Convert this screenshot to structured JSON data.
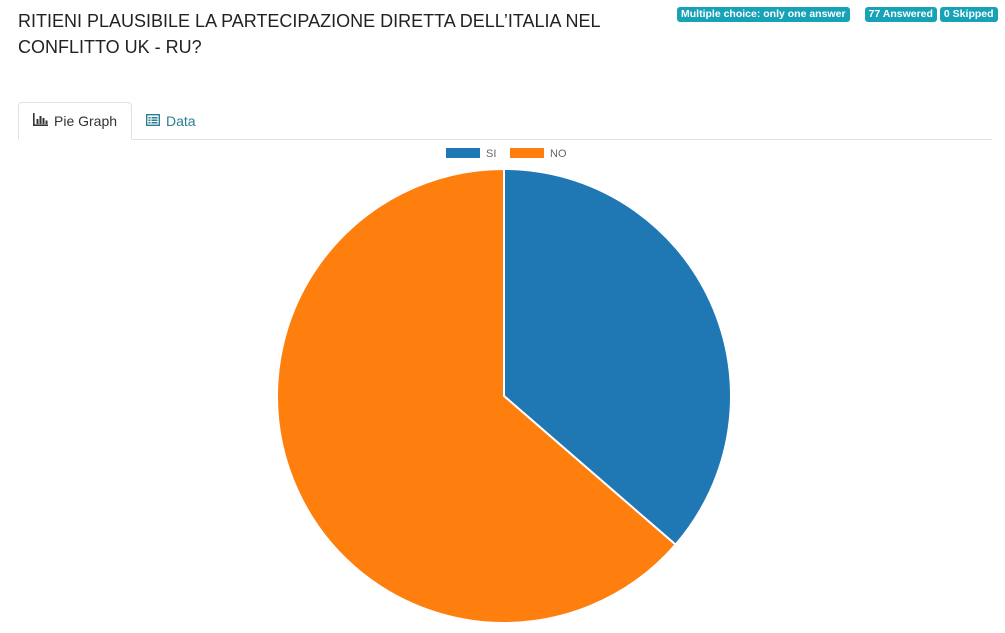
{
  "question": {
    "title": "RITIENI PLAUSIBILE LA PARTECIPAZIONE DIRETTA DELL’ITALIA NEL CONFLITTO UK - RU?",
    "type_badge": "Multiple choice: only one answer",
    "answered_badge": "77 Answered",
    "skipped_badge": "0 Skipped"
  },
  "tabs": [
    {
      "label": "Pie Graph",
      "icon": "bar-chart-icon",
      "active": true
    },
    {
      "label": "Data",
      "icon": "table-list-icon",
      "active": false
    }
  ],
  "colors": {
    "SI": "#1f77b4",
    "NO": "#ff7f0e",
    "badge": "#17a2b8",
    "tab_link": "#2a7f92"
  },
  "chart_data": {
    "type": "pie",
    "categories": [
      "SI",
      "NO"
    ],
    "values": [
      28,
      49
    ],
    "legend_position": "top"
  }
}
